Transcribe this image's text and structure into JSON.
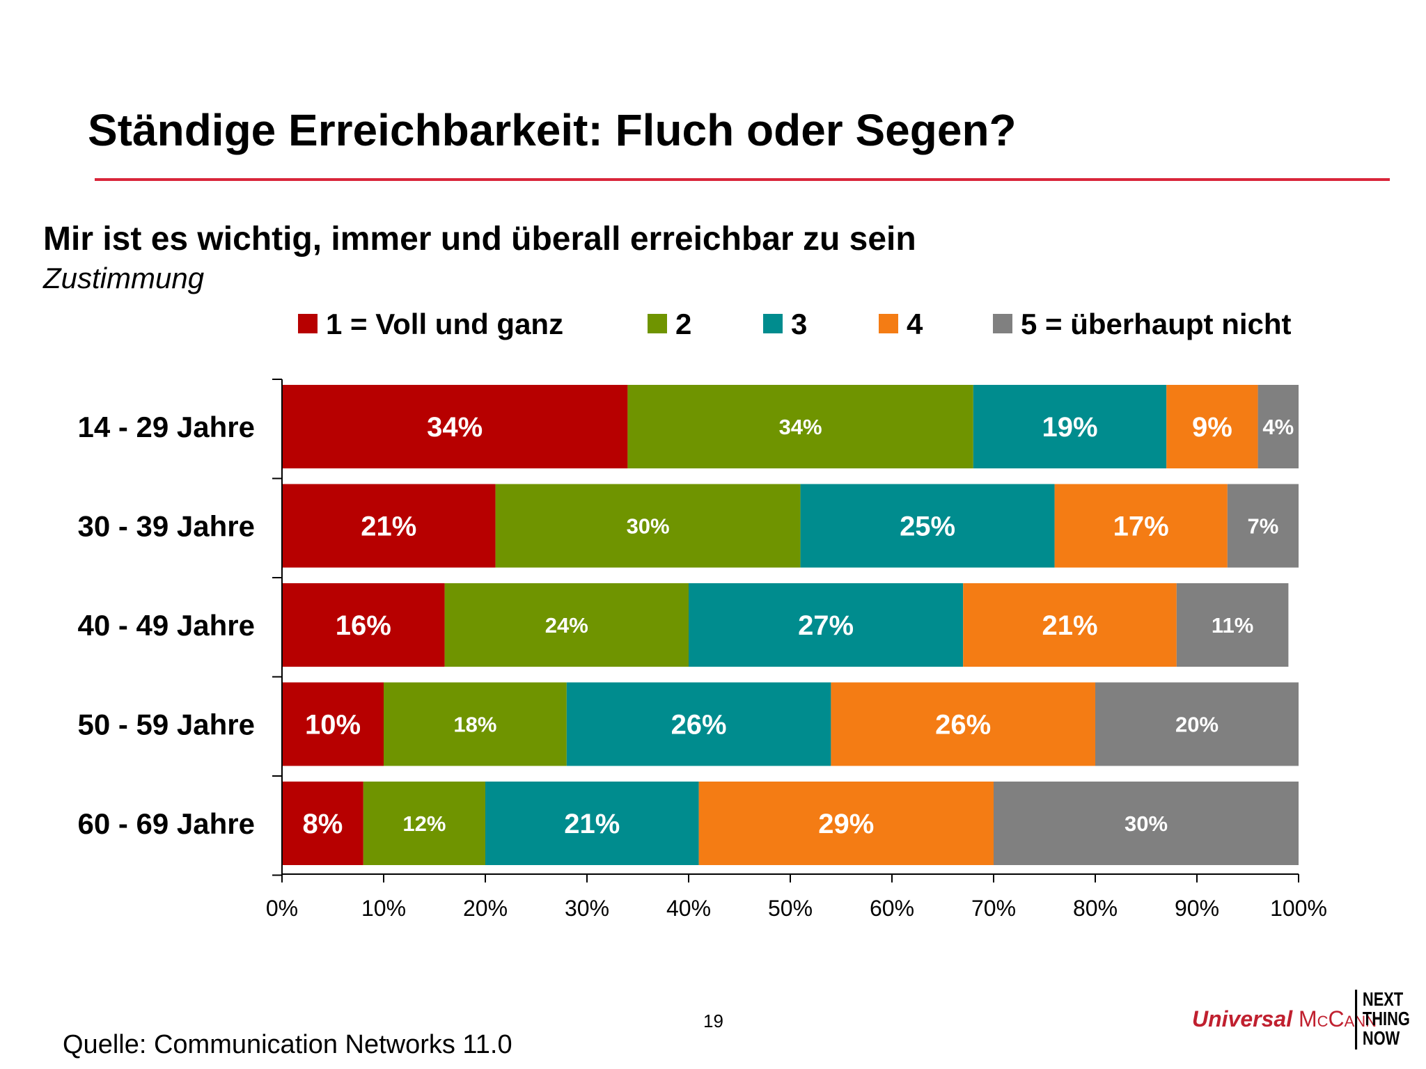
{
  "slide": {
    "title": "Ständige Erreichbarkeit: Fluch oder Segen?",
    "page_number": "19",
    "source": "Quelle: Communication Networks 11.0",
    "brand": {
      "part1": "Universal",
      "part2": "McCann"
    },
    "logo_lines": [
      "NEXT",
      "THING",
      "NOW"
    ]
  },
  "colors": {
    "title_rule": "#d9263a",
    "brand_red": "#c0202f",
    "series": [
      "#b70000",
      "#6f9400",
      "#008c8e",
      "#f47c14",
      "#808080"
    ]
  },
  "chart_data": {
    "type": "bar",
    "orientation": "horizontal",
    "stacked": "percent",
    "title": "Mir ist es wichtig, immer und überall erreichbar zu sein",
    "subtitle": "Zustimmung",
    "categories": [
      "14 - 29 Jahre",
      "30 - 39 Jahre",
      "40 - 49 Jahre",
      "50 - 59 Jahre",
      "60 - 69 Jahre"
    ],
    "series": [
      {
        "name": "1 = Voll und ganz",
        "values": [
          34,
          21,
          16,
          10,
          8
        ]
      },
      {
        "name": "2",
        "values": [
          34,
          30,
          24,
          18,
          12
        ]
      },
      {
        "name": "3",
        "values": [
          19,
          25,
          27,
          26,
          21
        ]
      },
      {
        "name": "4",
        "values": [
          9,
          17,
          21,
          26,
          29
        ]
      },
      {
        "name": "5 = überhaupt nicht",
        "values": [
          4,
          7,
          11,
          20,
          30
        ]
      }
    ],
    "data_labels": [
      [
        "34%",
        "34%",
        "19%",
        "9%",
        "4%"
      ],
      [
        "21%",
        "30%",
        "25%",
        "17%",
        "7%"
      ],
      [
        "16%",
        "24%",
        "27%",
        "21%",
        "11%"
      ],
      [
        "10%",
        "18%",
        "26%",
        "26%",
        "20%"
      ],
      [
        "8%",
        "12%",
        "21%",
        "29%",
        "30%"
      ]
    ],
    "xticks": [
      "0%",
      "10%",
      "20%",
      "30%",
      "40%",
      "50%",
      "60%",
      "70%",
      "80%",
      "90%",
      "100%"
    ],
    "xlim": [
      0,
      100
    ],
    "legend": "top",
    "grid": false
  }
}
